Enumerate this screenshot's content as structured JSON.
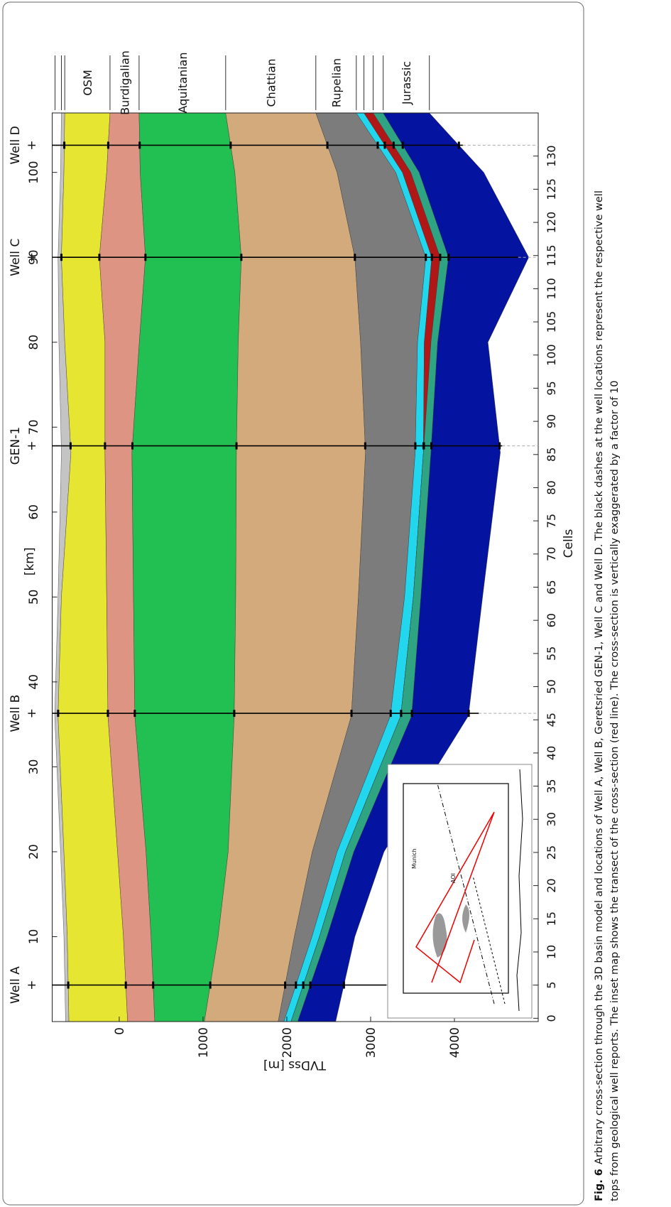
{
  "chart_data": {
    "type": "cross-section",
    "xlabel": "[km]",
    "x2label": "Cells",
    "ylabel": "TVDss [m]",
    "xlim": [
      0,
      107
    ],
    "xticks": [
      10,
      20,
      30,
      40,
      50,
      60,
      70,
      80,
      90,
      100
    ],
    "x2lim": [
      -0.5,
      136.5
    ],
    "x2ticks": [
      0,
      5,
      10,
      15,
      20,
      25,
      30,
      35,
      40,
      45,
      50,
      55,
      60,
      65,
      70,
      75,
      80,
      85,
      90,
      95,
      100,
      105,
      110,
      115,
      120,
      125,
      130
    ],
    "ylim": [
      -800,
      5000
    ],
    "yticks": [
      0,
      1000,
      2000,
      3000,
      4000
    ],
    "x": [
      0,
      10,
      20,
      36,
      50,
      67,
      80,
      90,
      100,
      107
    ],
    "top": [
      -640,
      -660,
      -700,
      -770,
      -730,
      -690,
      -720,
      -730,
      -700,
      -690
    ],
    "layers": [
      {
        "color": "#c4c4c4",
        "base": [
          -600,
          -620,
          -660,
          -730,
          -690,
          -576,
          -650,
          -690,
          -660,
          -650
        ]
      },
      {
        "label": "OSM",
        "color": "#e6e632",
        "base": [
          100,
          50,
          -20,
          -135,
          -150,
          -170,
          -170,
          -237,
          -150,
          -110
        ]
      },
      {
        "label": "Burdigalian",
        "color": "#de9482",
        "base": [
          424,
          380,
          320,
          186,
          170,
          152,
          240,
          313,
          250,
          237
        ]
      },
      {
        "label": "Aquitanian",
        "color": "#22c052",
        "base": [
          1016,
          1180,
          1300,
          1372,
          1390,
          1398,
          1420,
          1457,
          1380,
          1270
        ]
      },
      {
        "label": "Chattian",
        "color": "#d2aa7c",
        "base": [
          1897,
          2090,
          2304,
          2770,
          2854,
          2939,
          2880,
          2812,
          2600,
          2346
        ]
      },
      {
        "label": "Rupelian",
        "color": "#7c7c7c",
        "base": [
          1965,
          2300,
          2600,
          3236,
          3405,
          3532,
          3560,
          3659,
          3300,
          2829
        ]
      },
      {
        "color": "#22d6ee",
        "base": [
          2050,
          2390,
          2700,
          3360,
          3510,
          3630,
          3640,
          3730,
          3380,
          2920
        ]
      },
      {
        "color": "#b01818",
        "base": [
          2050,
          2390,
          2700,
          3360,
          3510,
          3630,
          3720,
          3830,
          3480,
          3030
        ]
      },
      {
        "color": "#2ea482",
        "base": [
          2130,
          2480,
          2800,
          3490,
          3600,
          3720,
          3800,
          3930,
          3580,
          3150
        ]
      },
      {
        "label": "Jurassic",
        "color": "#0414a0",
        "base": [
          2583,
          2812,
          3160,
          4167,
          4336,
          4548,
          4400,
          4887,
          4350,
          3701
        ]
      }
    ],
    "wells": [
      {
        "name": "Well A",
        "x": 4.3,
        "depth": 3190
      },
      {
        "name": "Well B",
        "x": 36.3,
        "depth": 4290
      },
      {
        "name": "GEN-1",
        "x": 67.8,
        "depth": 4570
      },
      {
        "name": "Well C",
        "x": 90,
        "depth": 4760
      },
      {
        "name": "Well D",
        "x": 103.2,
        "depth": 4100
      }
    ],
    "inset": {
      "labels": [
        "Munich",
        "AOI"
      ]
    },
    "caption": {
      "label": "Fig. 6",
      "lines": [
        "Arbitrary cross-section through the 3D basin model and locations of Well A, Well B, Geretsried GEN-1, Well C and Well D. The black dashes at the well locations represent the respective well",
        "tops from geological well reports. The inset map shows the transect of the cross-section (red line). The cross-section is vertically exaggerated by a factor of 10"
      ]
    }
  }
}
